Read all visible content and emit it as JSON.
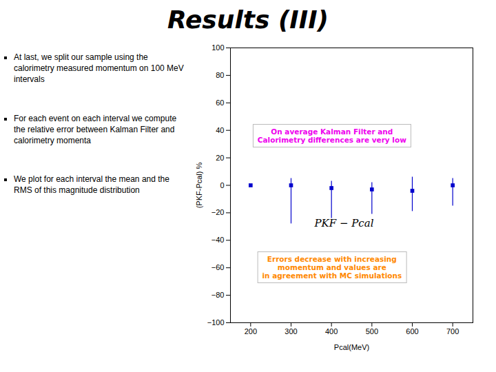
{
  "chart_data": {
    "type": "errorbar",
    "title": "Results (III)",
    "bullet_points": [
      "At last, we split our sample using the\ncalorimetry measured momentum on 100 MeV\nintervals",
      "For each event on each interval we compute\nthe relative error between Kalman Filter and\ncalorimetry momenta",
      "We plot for each interval the mean and the\nRMS of this magnitude distribution"
    ],
    "x": [
      200,
      300,
      400,
      500,
      600,
      700
    ],
    "values": [
      0,
      0,
      -2,
      -3,
      -4,
      0
    ],
    "yerr_low": [
      0,
      28,
      22,
      18,
      15,
      15
    ],
    "yerr_high": [
      0,
      5,
      5,
      5,
      10,
      5
    ],
    "color": "#0000cc",
    "marker": "square",
    "xlim": [
      150,
      750
    ],
    "ylim": [
      -100,
      100
    ],
    "xticks": [
      200,
      300,
      400,
      500,
      600,
      700
    ],
    "yticks": [
      -100,
      -80,
      -60,
      -40,
      -20,
      0,
      20,
      40,
      60,
      80,
      100
    ],
    "xlabel": "Pcal(MeV)",
    "ylabel": "(PKF-Pcal) %",
    "grid": false,
    "annotations": [
      {
        "text": "PKF − Pcal"
      },
      {
        "text": "On average Kalman Filter and\nCalorimetry differences are very low",
        "color": "#ee00ee"
      },
      {
        "text": "Errors decrease with increasing\nmomentum and values are\nin agreement with MC simulations",
        "color": "#ff8800"
      }
    ]
  }
}
